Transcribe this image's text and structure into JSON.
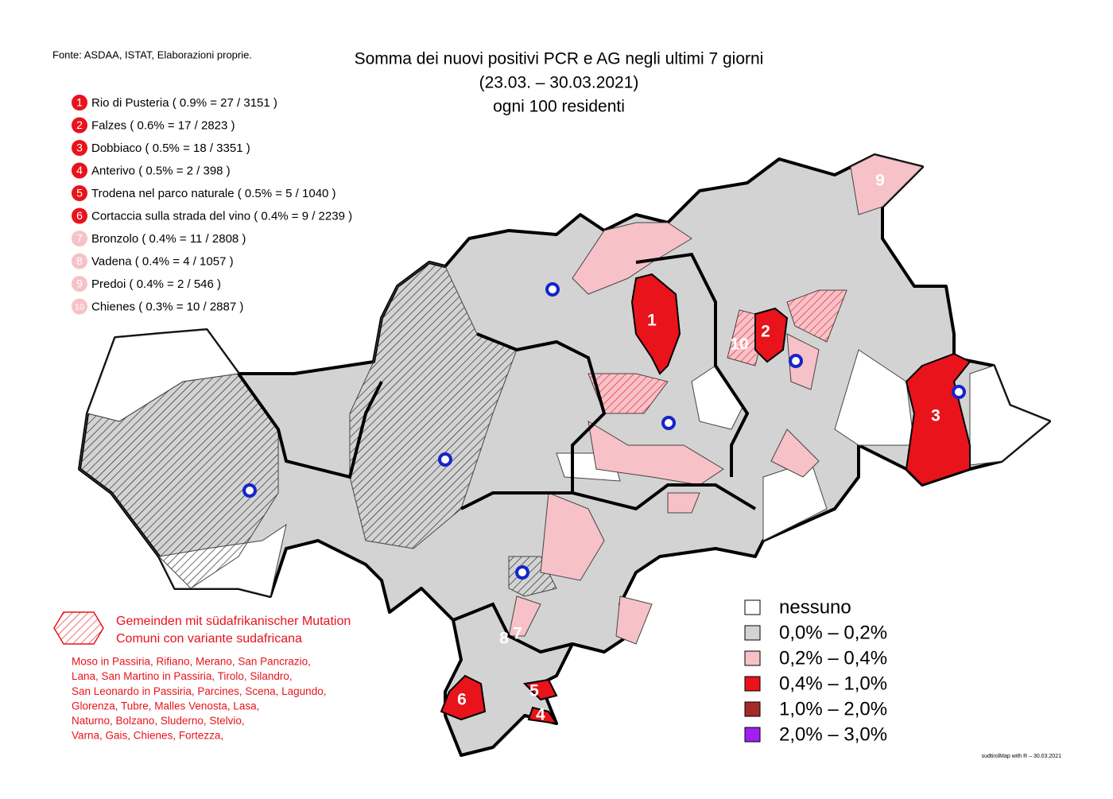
{
  "source": "Fonte: ASDAA, ISTAT, Elaborazioni proprie.",
  "title": [
    "Somma dei nuovi positivi PCR e AG negli ultimi 7 giorni",
    "(23.03. – 30.03.2021)",
    "ogni 100 residenti"
  ],
  "ranking": [
    {
      "rank": 1,
      "label": "Rio di Pusteria ( 0.9% = 27 / 3151 )",
      "color": "#e8131b"
    },
    {
      "rank": 2,
      "label": "Falzes ( 0.6% = 17 / 2823 )",
      "color": "#e8131b"
    },
    {
      "rank": 3,
      "label": "Dobbiaco ( 0.5% = 18 / 3351 )",
      "color": "#e8131b"
    },
    {
      "rank": 4,
      "label": "Anterivo ( 0.5% = 2 / 398 )",
      "color": "#e8131b"
    },
    {
      "rank": 5,
      "label": "Trodena nel parco naturale ( 0.5% = 5 / 1040 )",
      "color": "#e8131b"
    },
    {
      "rank": 6,
      "label": "Cortaccia sulla strada del vino ( 0.4% = 9 / 2239 )",
      "color": "#e8131b"
    },
    {
      "rank": 7,
      "label": "Bronzolo ( 0.4% = 11 / 2808 )",
      "color": "#f7c1c8"
    },
    {
      "rank": 8,
      "label": "Vadena ( 0.4% = 4 / 1057 )",
      "color": "#f7c1c8"
    },
    {
      "rank": 9,
      "label": "Predoi ( 0.4% = 2 / 546 )",
      "color": "#f7c1c8"
    },
    {
      "rank": 10,
      "label": "Chienes ( 0.3% = 10 / 2887 )",
      "color": "#f7c1c8"
    }
  ],
  "mutation_legend": [
    "Gemeinden mit südafrikanischer Mutation",
    "Comuni con variante sudafricana"
  ],
  "mutation_comuni": [
    "Moso in Passiria,  Rifiano,  Merano,  San Pancrazio,",
    "Lana,  San Martino in Passiria,  Tirolo,  Silandro,",
    "San Leonardo in Passiria,  Parcines,  Scena,  Lagundo,",
    "Glorenza,  Tubre,  Malles Venosta,  Lasa,",
    "Naturno,  Bolzano,  Sluderno,  Stelvio,",
    "Varna,  Gais,  Chienes,  Fortezza,"
  ],
  "legend": [
    {
      "label": "nessuno",
      "color": "#ffffff"
    },
    {
      "label": "0,0% – 0,2%",
      "color": "#d3d3d3"
    },
    {
      "label": "0,2% – 0,4%",
      "color": "#f7c1c8"
    },
    {
      "label": "0,4% – 1,0%",
      "color": "#e8131b"
    },
    {
      "label": "1,0% – 2,0%",
      "color": "#a52a2a"
    },
    {
      "label": "2,0% – 3,0%",
      "color": "#a020f0"
    }
  ],
  "footer": "sudtirolMap with R – 30.03.2021"
}
